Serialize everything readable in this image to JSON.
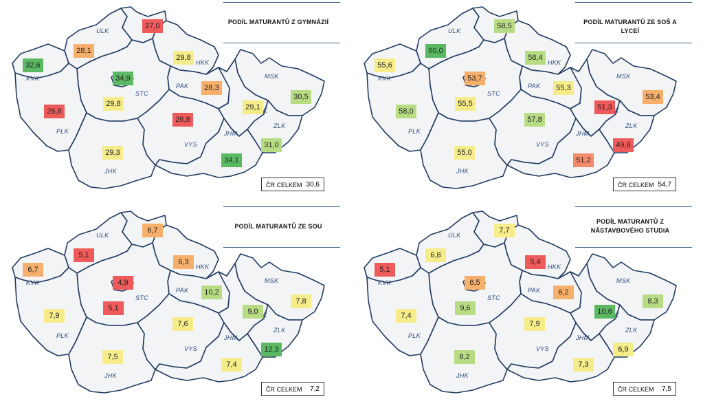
{
  "colors": {
    "green": "#5bb964",
    "lightgreen": "#b8dc84",
    "yellow": "#f6ec8a",
    "orange": "#f7b06b",
    "salmon": "#f38a6c",
    "red": "#ef5a5a"
  },
  "region_labels": {
    "KVK": "KVK",
    "ULK": "ULK",
    "LBK": "LBK",
    "HKK": "HKK",
    "PAK": "PAK",
    "STC": "STC",
    "PLK": "PLK",
    "JHK": "JHK",
    "VYS": "VYS",
    "JHM": "JHM",
    "OLK": "OLK",
    "MSK": "MSK",
    "ZLK": "ZLK"
  },
  "panels": [
    {
      "title_line1": "PODÍL MATURANTŮ Z GYMNÁZIÍ",
      "title_line2": "",
      "total_label": "ČR CELKEM",
      "total_value": "30,6",
      "values": {
        "LBK": {
          "v": "27,0",
          "c": "red"
        },
        "ULK": {
          "v": "28,1",
          "c": "orange"
        },
        "KVK": {
          "v": "32,6",
          "c": "green"
        },
        "PHA": {
          "v": "34,9",
          "c": "green"
        },
        "HKK": {
          "v": "29,8",
          "c": "yellow"
        },
        "PAK": {
          "v": "28,3",
          "c": "orange"
        },
        "STC": {
          "v": "29,8",
          "c": "yellow"
        },
        "PLK": {
          "v": "26,8",
          "c": "red"
        },
        "VYS": {
          "v": "26,8",
          "c": "red"
        },
        "OLK": {
          "v": "29,1",
          "c": "yellow"
        },
        "MSK": {
          "v": "30,5",
          "c": "lightgreen"
        },
        "JHK": {
          "v": "29,3",
          "c": "yellow"
        },
        "ZLK": {
          "v": "31,0",
          "c": "lightgreen"
        },
        "JHM": {
          "v": "34,1",
          "c": "green"
        }
      }
    },
    {
      "title_line1": "PODÍL MATURANTŮ ZE SOŠ A LYCEÍ",
      "title_line2": "",
      "total_label": "ČR CELKEM",
      "total_value": "54,7",
      "values": {
        "LBK": {
          "v": "58,5",
          "c": "lightgreen"
        },
        "ULK": {
          "v": "60,0",
          "c": "green"
        },
        "KVK": {
          "v": "55,6",
          "c": "yellow"
        },
        "PHA": {
          "v": "53,7",
          "c": "orange"
        },
        "HKK": {
          "v": "58,4",
          "c": "lightgreen"
        },
        "PAK": {
          "v": "55,3",
          "c": "yellow"
        },
        "STC": {
          "v": "55,5",
          "c": "yellow"
        },
        "PLK": {
          "v": "58,0",
          "c": "lightgreen"
        },
        "VYS": {
          "v": "57,8",
          "c": "lightgreen"
        },
        "OLK": {
          "v": "51,3",
          "c": "red"
        },
        "MSK": {
          "v": "53,4",
          "c": "orange"
        },
        "JHK": {
          "v": "55,0",
          "c": "yellow"
        },
        "ZLK": {
          "v": "49,8",
          "c": "red"
        },
        "JHM": {
          "v": "51,2",
          "c": "salmon"
        }
      }
    },
    {
      "title_line1": "PODÍL MATURANTŮ ZE SOU",
      "title_line2": "",
      "total_label": "ČR CELKEM",
      "total_value": "7,2",
      "values": {
        "LBK": {
          "v": "6,7",
          "c": "orange"
        },
        "ULK": {
          "v": "5,1",
          "c": "red"
        },
        "KVK": {
          "v": "6,7",
          "c": "orange"
        },
        "PHA": {
          "v": "4,9",
          "c": "red"
        },
        "HKK": {
          "v": "6,3",
          "c": "orange"
        },
        "PAK": {
          "v": "10,2",
          "c": "lightgreen"
        },
        "STC": {
          "v": "5,1",
          "c": "red"
        },
        "PLK": {
          "v": "7,9",
          "c": "yellow"
        },
        "VYS": {
          "v": "7,6",
          "c": "yellow"
        },
        "OLK": {
          "v": "9,0",
          "c": "lightgreen"
        },
        "MSK": {
          "v": "7,8",
          "c": "yellow"
        },
        "JHK": {
          "v": "7,5",
          "c": "yellow"
        },
        "ZLK": {
          "v": "12,3",
          "c": "green"
        },
        "JHM": {
          "v": "7,4",
          "c": "yellow"
        }
      }
    },
    {
      "title_line1": "PODÍL MATURANTŮ Z",
      "title_line2": "NÁSTAVBOVÉHO STUDIA",
      "total_label": "ČR CELKEM",
      "total_value": "7,5",
      "values": {
        "LBK": {
          "v": "7,7",
          "c": "yellow"
        },
        "ULK": {
          "v": "6,8",
          "c": "yellow"
        },
        "KVK": {
          "v": "5,1",
          "c": "red"
        },
        "PHA": {
          "v": "6,5",
          "c": "orange"
        },
        "HKK": {
          "v": "5,4",
          "c": "red"
        },
        "PAK": {
          "v": "6,2",
          "c": "orange"
        },
        "STC": {
          "v": "9,6",
          "c": "lightgreen"
        },
        "PLK": {
          "v": "7,4",
          "c": "yellow"
        },
        "VYS": {
          "v": "7,9",
          "c": "yellow"
        },
        "OLK": {
          "v": "10,6",
          "c": "green"
        },
        "MSK": {
          "v": "8,3",
          "c": "lightgreen"
        },
        "JHK": {
          "v": "8,2",
          "c": "lightgreen"
        },
        "ZLK": {
          "v": "6,9",
          "c": "yellow"
        },
        "JHM": {
          "v": "7,3",
          "c": "yellow"
        }
      }
    }
  ]
}
